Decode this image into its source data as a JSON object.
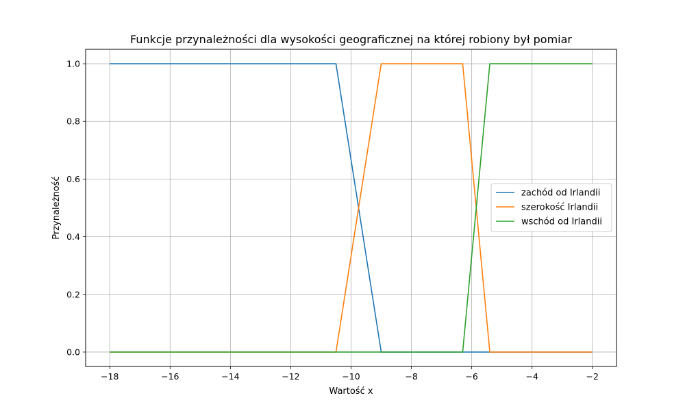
{
  "chart_data": {
    "type": "line",
    "title": "Funkcje przynależności dla wysokości geograficznej na której robiony był pomiar",
    "xlabel": "Wartość x",
    "ylabel": "Przynależność",
    "xlim": [
      -18.8,
      -1.2
    ],
    "ylim": [
      -0.05,
      1.05
    ],
    "xticks": [
      -18,
      -16,
      -14,
      -12,
      -10,
      -8,
      -6,
      -4,
      -2
    ],
    "xtick_labels": [
      "−18",
      "−16",
      "−14",
      "−12",
      "−10",
      "−8",
      "−6",
      "−4",
      "−2"
    ],
    "yticks": [
      0.0,
      0.2,
      0.4,
      0.6,
      0.8,
      1.0
    ],
    "ytick_labels": [
      "0.0",
      "0.2",
      "0.4",
      "0.6",
      "0.8",
      "1.0"
    ],
    "grid": true,
    "legend_position": "center-right",
    "series": [
      {
        "name": "zachód od Irlandii",
        "color": "#1f77b4",
        "x": [
          -18,
          -10.5,
          -9,
          -5.4,
          -2
        ],
        "y": [
          1,
          1,
          0,
          0,
          0
        ]
      },
      {
        "name": "szerokość Irlandii",
        "color": "#ff7f0e",
        "x": [
          -18,
          -10.5,
          -9,
          -6.3,
          -5.4,
          -2
        ],
        "y": [
          0,
          0,
          1,
          1,
          0,
          0
        ]
      },
      {
        "name": "wschód od Irlandii",
        "color": "#2ca02c",
        "x": [
          -18,
          -6.3,
          -5.4,
          -2
        ],
        "y": [
          0,
          0,
          1,
          1
        ]
      }
    ]
  }
}
